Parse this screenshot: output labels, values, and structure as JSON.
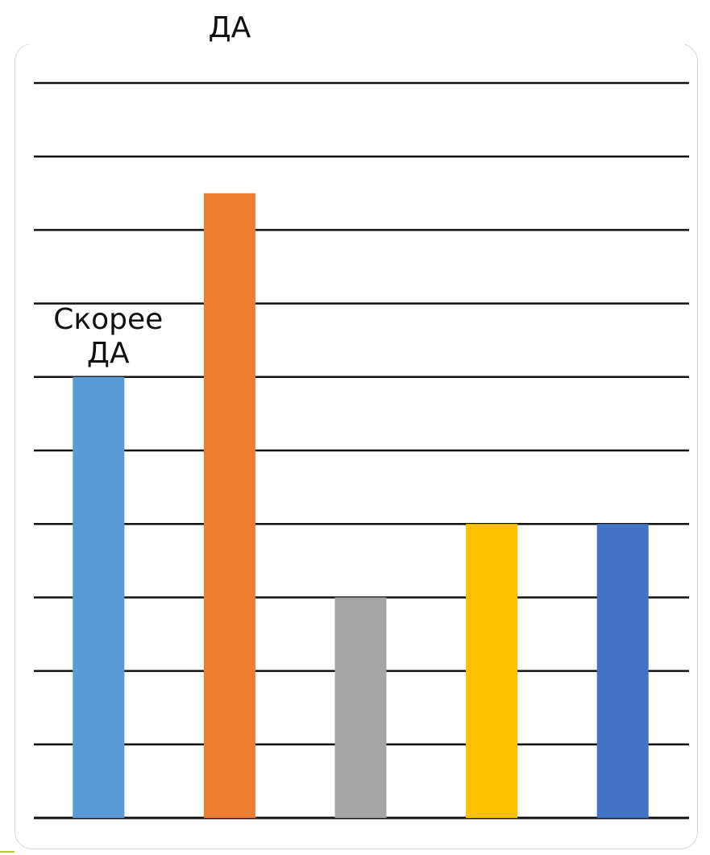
{
  "chart_data": {
    "type": "bar",
    "categories": [
      "",
      "",
      "",
      "",
      ""
    ],
    "values": [
      6,
      8.5,
      3,
      4,
      4
    ],
    "colors": [
      "#5b9bd5",
      "#ed7d31",
      "#a5a5a5",
      "#ffc000",
      "#4472c4"
    ],
    "ylim": [
      0,
      10
    ],
    "grid": true,
    "legend": "none",
    "data_labels": [
      {
        "bar": 0,
        "lines": [
          "Скорее",
          "ДА"
        ]
      },
      {
        "bar": 1,
        "lines": [
          "ДА"
        ]
      }
    ]
  }
}
